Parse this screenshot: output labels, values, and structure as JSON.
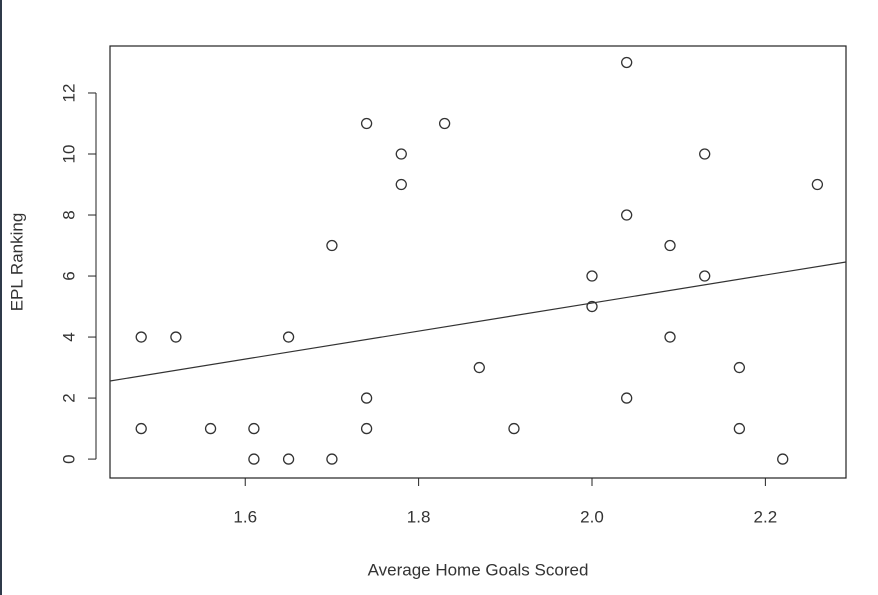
{
  "chart_data": {
    "type": "scatter",
    "x_label": "Average Home Goals Scored",
    "y_label": "EPL Ranking",
    "x": [
      1.48,
      1.48,
      1.52,
      1.56,
      1.61,
      1.61,
      1.65,
      1.65,
      1.7,
      1.7,
      1.74,
      1.74,
      1.74,
      1.78,
      1.78,
      1.83,
      1.87,
      1.91,
      2.0,
      2.0,
      2.04,
      2.04,
      2.04,
      2.09,
      2.09,
      2.13,
      2.13,
      2.17,
      2.17,
      2.22,
      2.26
    ],
    "values": [
      1,
      4,
      4,
      1,
      1,
      0,
      4,
      0,
      0,
      7,
      11,
      2,
      1,
      10,
      9,
      11,
      3,
      1,
      6,
      5,
      13,
      8,
      2,
      7,
      4,
      10,
      6,
      3,
      1,
      0,
      9
    ],
    "color": "#333333",
    "trend_line": {
      "x": [
        1.444,
        2.293
      ],
      "y": [
        2.56,
        6.46
      ]
    },
    "xlim": [
      1.444,
      2.293
    ],
    "ylim": [
      -0.62,
      13.54
    ],
    "xticks": [
      1.6,
      1.8,
      {
        "value": 2.0,
        "label": "2.0"
      },
      2.2
    ],
    "yticks": [
      0,
      2,
      4,
      6,
      8,
      10,
      12
    ]
  }
}
